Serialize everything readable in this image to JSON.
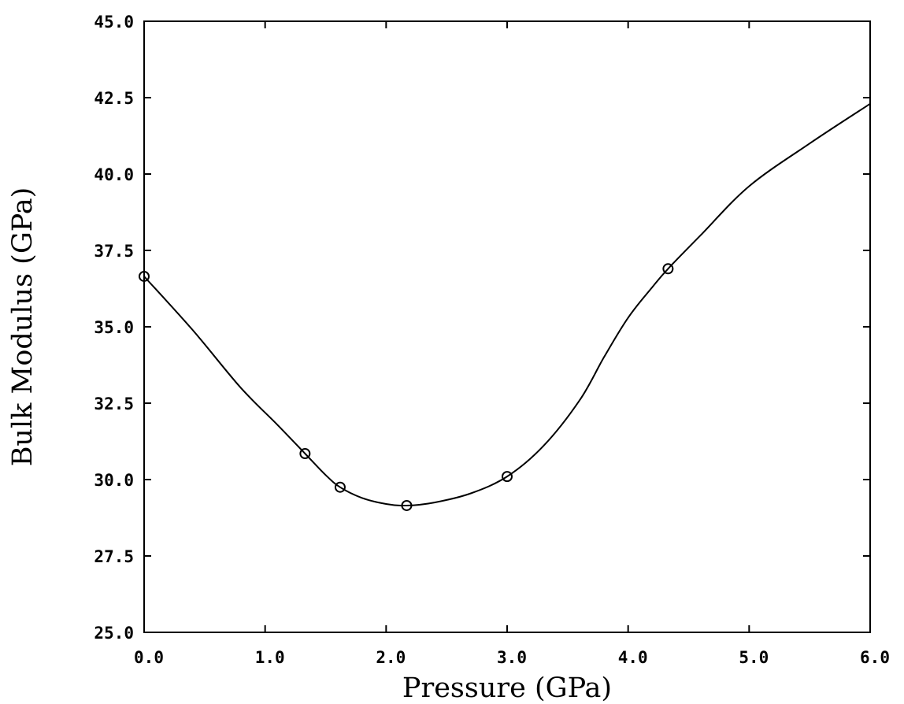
{
  "chart_data": {
    "type": "line",
    "title": "",
    "xlabel": "Pressure (GPa)",
    "ylabel": "Bulk Modulus (GPa)",
    "xlim": [
      0.0,
      6.0
    ],
    "ylim": [
      25.0,
      45.0
    ],
    "x_ticks": [
      0.0,
      1.0,
      2.0,
      3.0,
      4.0,
      5.0,
      6.0
    ],
    "x_tick_labels": [
      "0.0",
      "1.0",
      "2.0",
      "3.0",
      "4.0",
      "5.0",
      "6.0"
    ],
    "y_ticks": [
      25.0,
      27.5,
      30.0,
      32.5,
      35.0,
      37.5,
      40.0,
      42.5,
      45.0
    ],
    "y_tick_labels": [
      "25.0",
      "27.5",
      "30.0",
      "32.5",
      "35.0",
      "37.5",
      "40.0",
      "42.5",
      "45.0"
    ],
    "grid": false,
    "series": [
      {
        "style": "markers",
        "marker": "open-circle",
        "x": [
          0.0,
          1.33,
          1.62,
          2.17,
          3.0,
          4.33
        ],
        "y": [
          36.65,
          30.85,
          29.75,
          29.15,
          30.1,
          36.9
        ]
      },
      {
        "style": "line",
        "x": [
          0.0,
          0.4,
          0.8,
          1.1,
          1.33,
          1.5,
          1.62,
          1.8,
          2.0,
          2.17,
          2.4,
          2.7,
          3.0,
          3.3,
          3.6,
          3.8,
          4.0,
          4.2,
          4.33,
          4.6,
          5.0,
          5.5,
          6.0
        ],
        "y": [
          36.65,
          34.9,
          33.0,
          31.8,
          30.85,
          30.15,
          29.75,
          29.4,
          29.2,
          29.15,
          29.25,
          29.55,
          30.1,
          31.1,
          32.6,
          34.0,
          35.3,
          36.3,
          36.9,
          38.0,
          39.6,
          41.0,
          42.3
        ]
      }
    ]
  }
}
